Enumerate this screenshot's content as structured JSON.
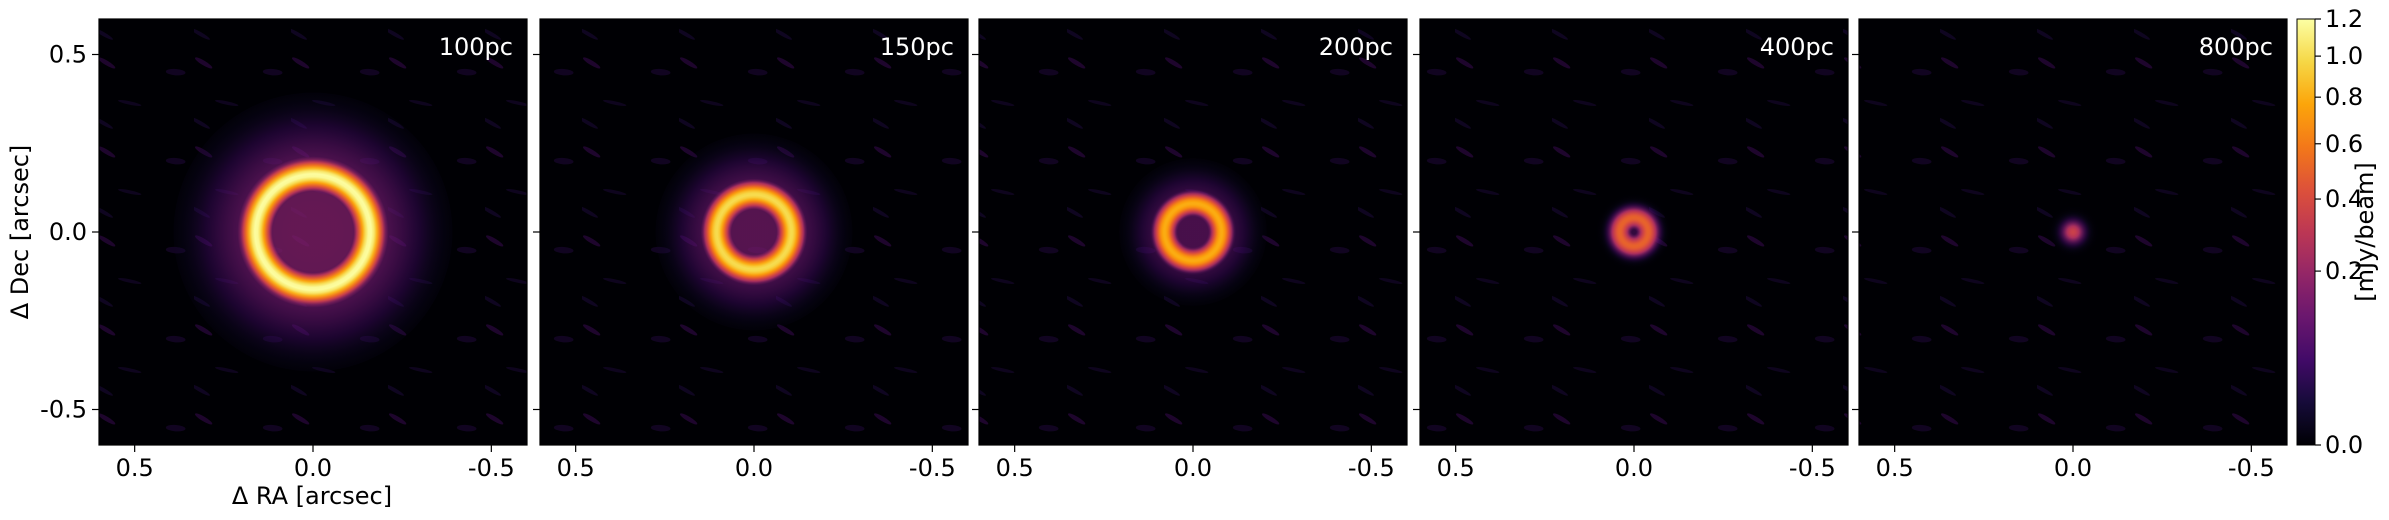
{
  "chart_data": {
    "type": "heatmap",
    "panels": [
      {
        "label": "100pc",
        "ring_radius": 0.16,
        "ring_width": 0.05,
        "peak": 1.2,
        "halo_radius": 0.34,
        "halo_level": 0.15
      },
      {
        "label": "150pc",
        "ring_radius": 0.105,
        "ring_width": 0.045,
        "peak": 1.0,
        "halo_radius": 0.24,
        "halo_level": 0.13
      },
      {
        "label": "200pc",
        "ring_radius": 0.08,
        "ring_width": 0.04,
        "peak": 0.8,
        "halo_radius": 0.18,
        "halo_level": 0.11
      },
      {
        "label": "400pc",
        "ring_radius": 0.04,
        "ring_width": 0.04,
        "peak": 0.5,
        "halo_radius": 0.08,
        "halo_level": 0.08
      },
      {
        "label": "800pc",
        "ring_radius": 0.0,
        "ring_width": 0.045,
        "peak": 0.35,
        "halo_radius": 0.04,
        "halo_level": 0.05
      }
    ],
    "xlabel": "Δ RA [arcsec]",
    "ylabel": "Δ Dec [arcsec]",
    "xlim": [
      0.6,
      -0.6
    ],
    "ylim": [
      -0.6,
      0.6
    ],
    "xticks": [
      {
        "v": 0.5,
        "label": "0.5"
      },
      {
        "v": 0.0,
        "label": "0.0"
      },
      {
        "v": -0.5,
        "label": "-0.5"
      }
    ],
    "yticks": [
      {
        "v": 0.5,
        "label": "0.5"
      },
      {
        "v": 0.0,
        "label": "0.0"
      },
      {
        "v": -0.5,
        "label": "-0.5"
      }
    ],
    "colorbar": {
      "label": "[mJy/beam]",
      "range": [
        0.0,
        1.2
      ],
      "scale": "sqrt",
      "ticks": [
        {
          "v": 0.0,
          "label": "0.0"
        },
        {
          "v": 0.2,
          "label": "0.2"
        },
        {
          "v": 0.4,
          "label": "0.4"
        },
        {
          "v": 0.6,
          "label": "0.6"
        },
        {
          "v": 0.8,
          "label": "0.8"
        },
        {
          "v": 1.0,
          "label": "1.0"
        },
        {
          "v": 1.2,
          "label": "1.2"
        }
      ],
      "colormap": "inferno"
    }
  }
}
